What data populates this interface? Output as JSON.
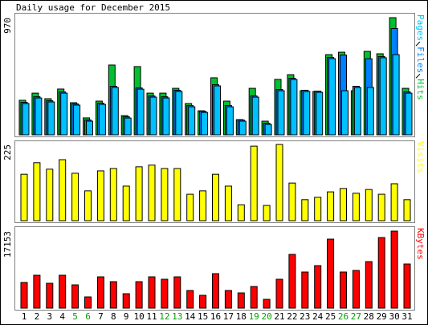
{
  "chart_data": [
    {
      "type": "bar",
      "title": "Daily usage for December 2015",
      "categories": [
        "1",
        "2",
        "3",
        "4",
        "5",
        "6",
        "7",
        "8",
        "9",
        "10",
        "11",
        "12",
        "13",
        "14",
        "15",
        "16",
        "17",
        "18",
        "19",
        "20",
        "21",
        "22",
        "23",
        "24",
        "25",
        "26",
        "27",
        "28",
        "29",
        "30",
        "31"
      ],
      "label_colors": [
        "#000000",
        "#000000",
        "#000000",
        "#000000",
        "#00a000",
        "#00a000",
        "#000000",
        "#000000",
        "#000000",
        "#000000",
        "#000000",
        "#00a000",
        "#00a000",
        "#000000",
        "#000000",
        "#000000",
        "#000000",
        "#000000",
        "#00a000",
        "#00a000",
        "#000000",
        "#000000",
        "#000000",
        "#000000",
        "#000000",
        "#00a000",
        "#00a000",
        "#000000",
        "#000000",
        "#000000",
        "#000000"
      ],
      "series": [
        {
          "name": "Hits",
          "color": "#00c030",
          "values": [
            286,
            345,
            299,
            379,
            266,
            140,
            279,
            578,
            159,
            565,
            345,
            345,
            385,
            259,
            199,
            472,
            279,
            126,
            385,
            113,
            459,
            498,
            365,
            359,
            664,
            684,
            365,
            691,
            671,
            970,
            385
          ]
        },
        {
          "name": "Files",
          "color": "#0080ff",
          "values": [
            269,
            315,
            282,
            355,
            256,
            123,
            262,
            402,
            149,
            388,
            322,
            315,
            369,
            242,
            195,
            415,
            242,
            123,
            322,
            96,
            375,
            468,
            369,
            362,
            641,
            660,
            402,
            630,
            648,
            880,
            355
          ]
        },
        {
          "name": "Pages",
          "color": "#00c0ff",
          "values": [
            259,
            305,
            272,
            345,
            246,
            113,
            252,
            392,
            139,
            378,
            312,
            305,
            359,
            232,
            185,
            405,
            232,
            113,
            312,
            86,
            365,
            458,
            359,
            352,
            631,
            365,
            392,
            392,
            638,
            664,
            345
          ]
        }
      ],
      "ylim": [
        0,
        970
      ],
      "yticks": [
        970
      ]
    },
    {
      "type": "bar",
      "series": [
        {
          "name": "Visits",
          "color": "#ffff00",
          "values": [
            137,
            171,
            152,
            180,
            140,
            88,
            147,
            154,
            102,
            159,
            164,
            154,
            154,
            78,
            88,
            137,
            102,
            47,
            220,
            45,
            225,
            111,
            62,
            69,
            85,
            95,
            81,
            92,
            78,
            109,
            62
          ]
        }
      ],
      "ylim": [
        0,
        225
      ],
      "yticks": [
        225
      ]
    },
    {
      "type": "bar",
      "series": [
        {
          "name": "KBytes",
          "color": "#ff0000",
          "values": [
            5718,
            7327,
            5540,
            7327,
            5182,
            2502,
            6969,
            5897,
            3217,
            5897,
            6969,
            6433,
            6969,
            3931,
            2859,
            7684,
            3931,
            3395,
            4825,
            1966,
            6433,
            11972,
            8041,
            9471,
            15367,
            8041,
            8398,
            10364,
            15724,
            17153,
            9828
          ]
        }
      ],
      "ylim": [
        0,
        17153
      ],
      "yticks": [
        17153
      ]
    }
  ]
}
